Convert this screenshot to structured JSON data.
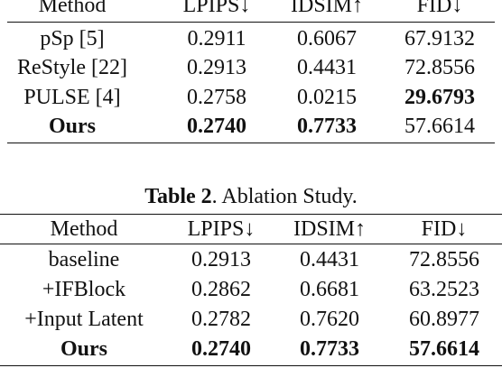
{
  "table1": {
    "header": [
      "Method",
      "LPIPS↓",
      "IDSIM↑",
      "FID↓"
    ],
    "rows": [
      [
        "pSp [5]",
        "0.2911",
        "0.6067",
        "67.9132"
      ],
      [
        "ReStyle [22]",
        "0.2913",
        "0.4431",
        "72.8556"
      ],
      [
        "PULSE [4]",
        "0.2758",
        "0.0215",
        "29.6793"
      ],
      [
        "Ours",
        "0.2740",
        "0.7733",
        "57.6614"
      ]
    ]
  },
  "table2": {
    "caption_label": "Table 2",
    "caption_text": ". Ablation Study.",
    "header": [
      "Method",
      "LPIPS↓",
      "IDSIM↑",
      "FID↓"
    ],
    "rows": [
      [
        "baseline",
        "0.2913",
        "0.4431",
        "72.8556"
      ],
      [
        "+IFBlock",
        "0.2862",
        "0.6681",
        "63.2523"
      ],
      [
        "+Input Latent",
        "0.2782",
        "0.7620",
        "60.8977"
      ],
      [
        "Ours",
        "0.2740",
        "0.7733",
        "57.6614"
      ]
    ]
  }
}
